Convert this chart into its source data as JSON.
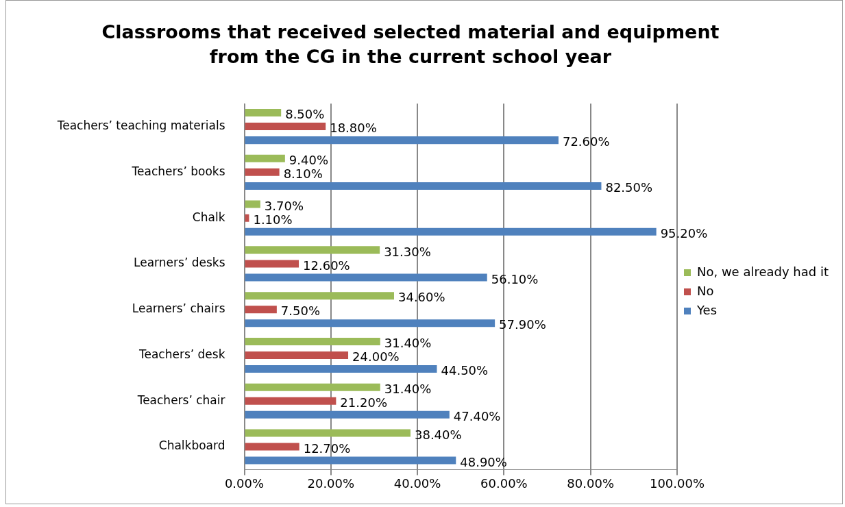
{
  "chart_data": {
    "type": "bar",
    "orientation": "horizontal",
    "title": "Classrooms that received selected material and equipment\nfrom the CG in the current school year",
    "categories": [
      "Teachers’ teaching materials",
      "Teachers’ books",
      "Chalk",
      "Learners’ desks",
      "Learners’ chairs",
      "Teachers’ desk",
      "Teachers’ chair",
      "Chalkboard"
    ],
    "series": [
      {
        "name": "No, we already had it",
        "color": "#9bbb59",
        "values": [
          8.5,
          9.4,
          3.7,
          31.3,
          34.6,
          31.4,
          31.4,
          38.4
        ],
        "value_labels": [
          "8.50%",
          "9.40%",
          "3.70%",
          "31.30%",
          "34.60%",
          "31.40%",
          "31.40%",
          "38.40%"
        ]
      },
      {
        "name": "No",
        "color": "#c0504d",
        "values": [
          18.8,
          8.1,
          1.1,
          12.6,
          7.5,
          24.0,
          21.2,
          12.7
        ],
        "value_labels": [
          "18.80%",
          "8.10%",
          "1.10%",
          "12.60%",
          "7.50%",
          "24.00%",
          "21.20%",
          "12.70%"
        ]
      },
      {
        "name": "Yes",
        "color": "#4f81bd",
        "values": [
          72.6,
          82.5,
          95.2,
          56.1,
          57.9,
          44.5,
          47.4,
          48.9
        ],
        "value_labels": [
          "72.60%",
          "82.50%",
          "95.20%",
          "56.10%",
          "57.90%",
          "44.50%",
          "47.40%",
          "48.90%"
        ]
      }
    ],
    "xlim": [
      0,
      100
    ],
    "xticks": [
      {
        "value": 0,
        "label": "0.00%"
      },
      {
        "value": 20,
        "label": "20.00%"
      },
      {
        "value": 40,
        "label": "40.00%"
      },
      {
        "value": 60,
        "label": "60.00%"
      },
      {
        "value": 80,
        "label": "80.00%"
      },
      {
        "value": 100,
        "label": "100.00%"
      }
    ],
    "grid": "x",
    "legend": "right"
  }
}
